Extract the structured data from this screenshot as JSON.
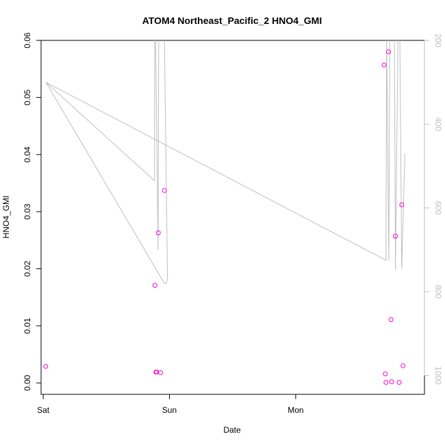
{
  "chart_data": {
    "type": "scatter",
    "title": "ATOM4 Northeast_Pacific_2 HNO4_GMI",
    "xlabel": "Date",
    "ylabel": "HNO4_GMI",
    "x_ticks": [
      "Sat",
      "Sun",
      "Mon"
    ],
    "x_range_days": [
      -0.0167,
      3.02
    ],
    "ylim": [
      -0.002,
      0.06
    ],
    "y_ticks": [
      "0.00",
      "0.01",
      "0.02",
      "0.03",
      "0.04",
      "0.05",
      "0.06"
    ],
    "y2_label": "",
    "y2_lim_reversed": [
      1045,
      200
    ],
    "y2_ticks": [
      "200",
      "400",
      "600",
      "800",
      "1000"
    ],
    "grid": false,
    "legend": "none",
    "colors": {
      "points": "#ff00cc",
      "pressure_line": "#bebebe",
      "axis": "#000000",
      "right_axis": "#bebebe"
    },
    "series": [
      {
        "marker": "open-circle",
        "points": [
          {
            "day": 0.02,
            "value": 0.0029
          },
          {
            "day": 0.885,
            "value": 0.0171
          },
          {
            "day": 0.893,
            "value": 0.0019
          },
          {
            "day": 0.899,
            "value": 0.0019
          },
          {
            "day": 0.912,
            "value": 0.0263
          },
          {
            "day": 0.93,
            "value": 0.0018
          },
          {
            "day": 0.96,
            "value": 0.0337
          },
          {
            "day": 2.7,
            "value": 0.0557
          },
          {
            "day": 2.71,
            "value": 0.0016
          },
          {
            "day": 2.715,
            "value": 0.0001
          },
          {
            "day": 2.735,
            "value": 0.058
          },
          {
            "day": 2.755,
            "value": 0.0111
          },
          {
            "day": 2.76,
            "value": 0.0002
          },
          {
            "day": 2.79,
            "value": 0.0257
          },
          {
            "day": 2.82,
            "value": 0.0001
          },
          {
            "day": 2.84,
            "value": 0.0312
          },
          {
            "day": 2.85,
            "value": 0.003
          }
        ]
      },
      {
        "marker": "line",
        "axis": "right",
        "points": [
          {
            "day": 0.022,
            "pressure": 300
          },
          {
            "day": 0.96,
            "pressure": 780
          },
          {
            "day": 0.975,
            "pressure": 780
          },
          {
            "day": 0.985,
            "pressure": 770
          },
          {
            "day": 0.96,
            "pressure": 190
          },
          {
            "day": 0.91,
            "pressure": 190
          },
          {
            "day": 0.915,
            "pressure": 200
          },
          {
            "day": 0.91,
            "pressure": 700
          },
          {
            "day": 0.89,
            "pressure": 190
          },
          {
            "day": 0.883,
            "pressure": 190
          },
          {
            "day": 0.882,
            "pressure": 535
          },
          {
            "day": 0.022,
            "pressure": 300
          },
          {
            "day": 2.715,
            "pressure": 725
          },
          {
            "day": 2.72,
            "pressure": 190
          },
          {
            "day": 2.738,
            "pressure": 725
          },
          {
            "day": 2.745,
            "pressure": 190
          },
          {
            "day": 2.782,
            "pressure": 190
          },
          {
            "day": 2.79,
            "pressure": 748
          },
          {
            "day": 2.81,
            "pressure": 190
          },
          {
            "day": 2.825,
            "pressure": 190
          },
          {
            "day": 2.84,
            "pressure": 745
          },
          {
            "day": 2.865,
            "pressure": 470
          }
        ]
      }
    ]
  }
}
